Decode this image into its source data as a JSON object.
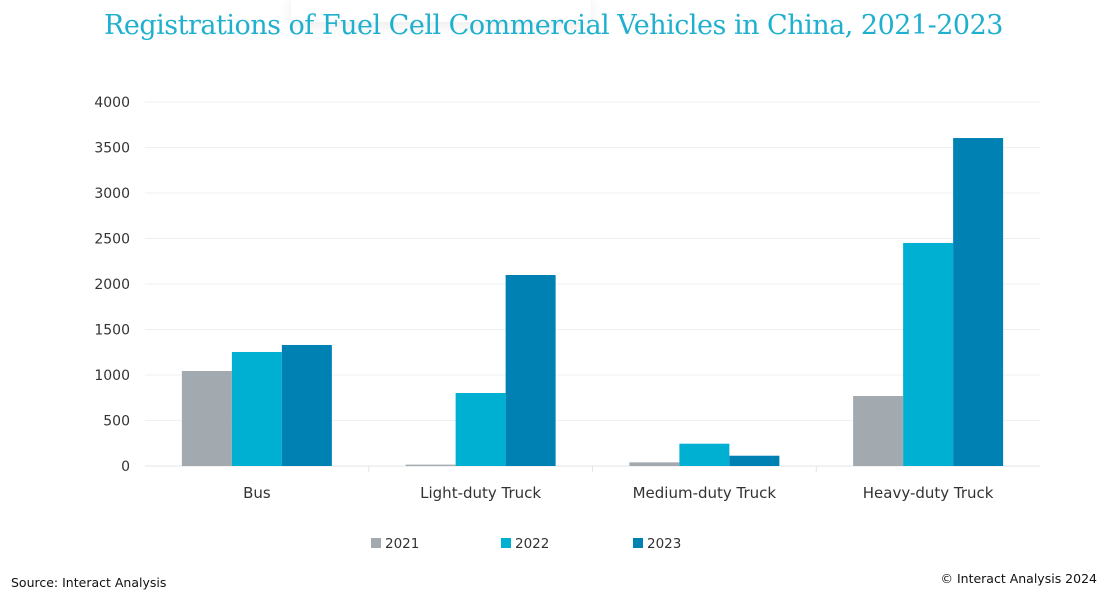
{
  "chart_data": {
    "type": "bar",
    "title": "Registrations of Fuel Cell Commercial Vehicles in China, 2021-2023",
    "categories": [
      "Bus",
      "Light-duty Truck",
      "Medium-duty Truck",
      "Heavy-duty Truck"
    ],
    "series": [
      {
        "name": "2021",
        "color": "#a2aab0",
        "values": [
          1044,
          15,
          40,
          769
        ]
      },
      {
        "name": "2022",
        "color": "#00b0d2",
        "values": [
          1253,
          802,
          245,
          2451
        ]
      },
      {
        "name": "2023",
        "color": "#0081b4",
        "values": [
          1330,
          2099,
          113,
          3604
        ]
      }
    ],
    "ylim": [
      0,
      4000
    ],
    "yticks": [
      "0",
      "500",
      "1000",
      "1500",
      "2000",
      "2500",
      "3000",
      "3500",
      "4000"
    ],
    "grid": true,
    "legend": "bottom"
  },
  "footer": {
    "source": "Source: Interact Analysis",
    "copyright": "© Interact Analysis 2024"
  }
}
